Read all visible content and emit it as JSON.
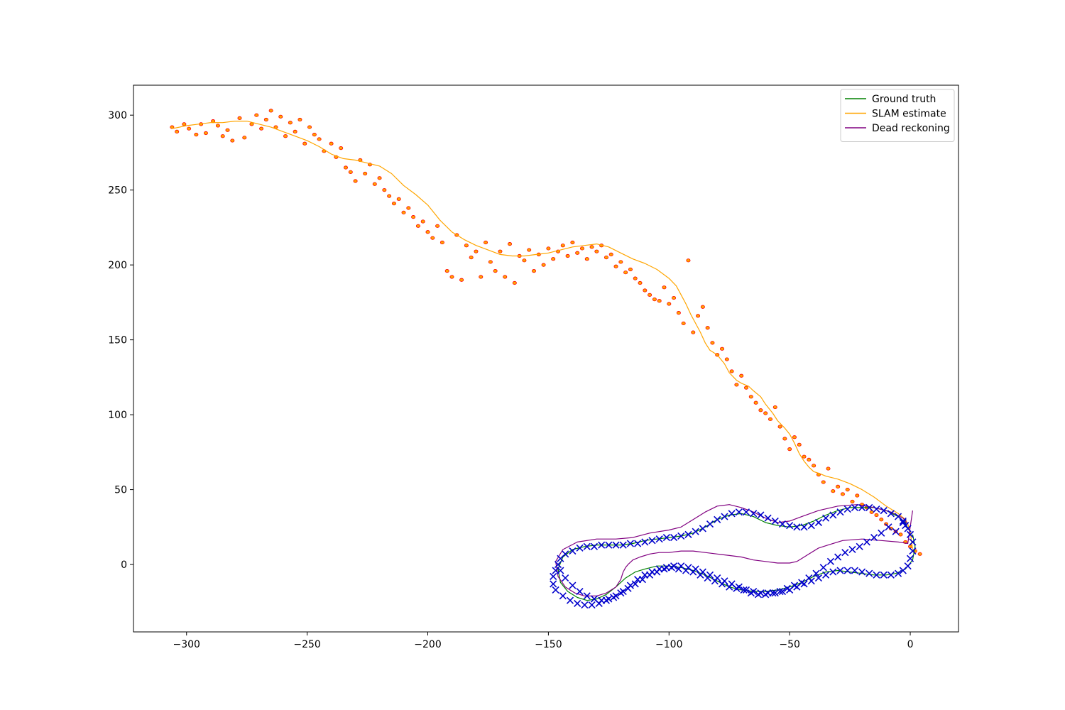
{
  "chart_data": {
    "type": "line",
    "title": "",
    "xlabel": "",
    "ylabel": "",
    "xlim": [
      -322,
      20
    ],
    "ylim": [
      -45,
      320
    ],
    "xticks": [
      -300,
      -250,
      -200,
      -150,
      -100,
      -50,
      0
    ],
    "xtick_labels": [
      "−300",
      "−250",
      "−200",
      "−150",
      "−100",
      "−50",
      "0"
    ],
    "yticks": [
      0,
      50,
      100,
      150,
      200,
      250,
      300
    ],
    "ytick_labels": [
      "0",
      "50",
      "100",
      "150",
      "200",
      "250",
      "300"
    ],
    "grid": false,
    "legend_position": "upper right",
    "series": [
      {
        "name": "Ground truth",
        "kind": "line",
        "color": "#008000",
        "x": [
          -1,
          -2,
          -5,
          -10,
          -15,
          -20,
          -25,
          -30,
          -35,
          -40,
          -45,
          -50,
          -55,
          -60,
          -65,
          -70,
          -75,
          -80,
          -85,
          -90,
          -95,
          -100,
          -105,
          -110,
          -115,
          -120,
          -125,
          -130,
          -135,
          -140,
          -144,
          -146,
          -145,
          -142,
          -138,
          -134,
          -130,
          -126,
          -122,
          -118,
          -114,
          -110,
          -105,
          -100,
          -95,
          -90,
          -85,
          -80,
          -75,
          -70,
          -65,
          -60,
          -55,
          -50,
          -45,
          -40,
          -35,
          -30,
          -25,
          -20,
          -15,
          -10,
          -6,
          -2,
          1,
          2,
          1
        ],
        "y": [
          24,
          28,
          32,
          36,
          38,
          38,
          38,
          36,
          33,
          29,
          26,
          25,
          26,
          28,
          32,
          34,
          33,
          30,
          25,
          21,
          19,
          18,
          17,
          16,
          14,
          13,
          13,
          13,
          12,
          10,
          5,
          -3,
          -12,
          -18,
          -22,
          -24,
          -23,
          -20,
          -15,
          -9,
          -5,
          -3,
          -1,
          -1,
          -2,
          -4,
          -7,
          -11,
          -15,
          -17,
          -18,
          -18,
          -17,
          -15,
          -12,
          -8,
          -5,
          -4,
          -5,
          -6,
          -7,
          -7,
          -6,
          -3,
          3,
          12,
          20
        ]
      },
      {
        "name": "SLAM estimate",
        "kind": "line",
        "color": "#FFA500",
        "x": [
          -306,
          -300,
          -295,
          -290,
          -285,
          -280,
          -275,
          -270,
          -265,
          -260,
          -255,
          -250,
          -245,
          -240,
          -235,
          -230,
          -225,
          -220,
          -215,
          -210,
          -205,
          -200,
          -195,
          -190,
          -185,
          -180,
          -175,
          -170,
          -165,
          -160,
          -155,
          -150,
          -145,
          -140,
          -135,
          -130,
          -125,
          -120,
          -115,
          -110,
          -105,
          -100,
          -97,
          -95,
          -93,
          -91,
          -89,
          -87,
          -85,
          -83,
          -80,
          -77,
          -75,
          -72,
          -70,
          -67,
          -65,
          -62,
          -60,
          -57,
          -55,
          -52,
          -50,
          -48,
          -46,
          -44,
          -42,
          -40,
          -38,
          -35,
          -30,
          -25,
          -20,
          -15,
          -10,
          -5,
          -2,
          -1,
          0,
          1
        ],
        "y": [
          291,
          293,
          294,
          295,
          295,
          296,
          296,
          294,
          292,
          289,
          286,
          283,
          279,
          274,
          271,
          270,
          268,
          266,
          261,
          253,
          247,
          240,
          230,
          222,
          217,
          213,
          210,
          207,
          206,
          206,
          207,
          208,
          210,
          212,
          213,
          214,
          212,
          208,
          204,
          201,
          197,
          191,
          186,
          180,
          174,
          167,
          161,
          155,
          148,
          143,
          140,
          134,
          128,
          123,
          121,
          119,
          116,
          112,
          107,
          101,
          96,
          91,
          87,
          81,
          74,
          69,
          65,
          62,
          61,
          59,
          57,
          54,
          50,
          45,
          39,
          34,
          30,
          27,
          22,
          10
        ]
      },
      {
        "name": "Dead reckoning",
        "kind": "line",
        "color": "#800080",
        "x": [
          -1,
          -3,
          -8,
          -15,
          -22,
          -30,
          -38,
          -45,
          -50,
          -55,
          -60,
          -65,
          -70,
          -75,
          -80,
          -85,
          -90,
          -95,
          -100,
          -108,
          -115,
          -122,
          -130,
          -138,
          -144,
          -147,
          -146,
          -143,
          -139,
          -135,
          -130,
          -126,
          -122,
          -120,
          -119,
          -118,
          -117,
          -115,
          -112,
          -108,
          -104,
          -100,
          -95,
          -90,
          -85,
          -80,
          -75,
          -70,
          -65,
          -60,
          -55,
          -50,
          -47,
          -45,
          -42,
          -38,
          -34,
          -28,
          -20,
          -12,
          -5,
          -1,
          1
        ],
        "y": [
          27,
          31,
          35,
          38,
          40,
          39,
          36,
          32,
          29,
          28,
          31,
          35,
          38,
          40,
          39,
          35,
          30,
          25,
          23,
          21,
          18,
          17,
          17,
          15,
          10,
          2,
          -8,
          -15,
          -19,
          -21,
          -21,
          -19,
          -15,
          -10,
          -5,
          -2,
          0,
          3,
          5,
          7,
          8,
          8,
          9,
          9,
          8,
          7,
          6,
          5,
          3,
          2,
          1,
          1,
          2,
          4,
          7,
          11,
          13,
          16,
          17,
          16,
          15,
          14,
          36
        ]
      },
      {
        "name": "",
        "kind": "scatter",
        "marker": "x",
        "color": "#0000CC",
        "x": [
          -2,
          -3,
          -5,
          -8,
          -11,
          -14,
          -17,
          -20,
          -23,
          -26,
          -29,
          -32,
          -35,
          -38,
          -41,
          -44,
          -47,
          -50,
          -53,
          -56,
          -59,
          -62,
          -65,
          -68,
          -71,
          -74,
          -77,
          -80,
          -83,
          -86,
          -89,
          -92,
          -95,
          -98,
          -101,
          -104,
          -107,
          -110,
          -113,
          -116,
          -119,
          -122,
          -125,
          -128,
          -131,
          -134,
          -137,
          -140,
          -143,
          -145,
          -146,
          -145,
          -143,
          -140,
          -137,
          -134,
          -131,
          -128,
          -125,
          -122,
          -119,
          -116,
          -113,
          -110,
          -107,
          -104,
          -101,
          -98,
          -95,
          -92,
          -89,
          -86,
          -83,
          -80,
          -77,
          -74,
          -71,
          -68,
          -65,
          -62,
          -59,
          -56,
          -53,
          -50,
          -47,
          -44,
          -41,
          -38,
          -35,
          -32,
          -29,
          -26,
          -23,
          -20,
          -17,
          -14,
          -11,
          -8,
          -5,
          -3,
          -1,
          0,
          1,
          1,
          0,
          -1,
          -3,
          -6,
          -9,
          -12,
          -15,
          -18,
          -21,
          -24,
          -27,
          -30,
          -33,
          -36,
          -39,
          -42,
          -45,
          -48,
          -51,
          -54,
          -57,
          -60,
          -63,
          -66,
          -69,
          -72,
          -75,
          -78,
          -81,
          -84,
          -87,
          -90,
          -93,
          -96,
          -99,
          -102,
          -105,
          -108,
          -111,
          -114,
          -117,
          -120,
          -123,
          -126,
          -129,
          -132,
          -135,
          -138,
          -141,
          -144,
          -147,
          -148,
          -148,
          -147
        ],
        "y": [
          26,
          29,
          32,
          34,
          36,
          37,
          38,
          38,
          38,
          37,
          35,
          33,
          31,
          28,
          26,
          25,
          25,
          26,
          27,
          29,
          31,
          33,
          34,
          35,
          35,
          34,
          32,
          30,
          27,
          24,
          22,
          20,
          19,
          18,
          18,
          17,
          16,
          15,
          14,
          14,
          13,
          13,
          13,
          13,
          12,
          12,
          11,
          9,
          7,
          4,
          0,
          -4,
          -9,
          -14,
          -18,
          -21,
          -23,
          -24,
          -23,
          -21,
          -18,
          -14,
          -10,
          -7,
          -5,
          -3,
          -2,
          -1,
          -1,
          -2,
          -3,
          -5,
          -7,
          -9,
          -11,
          -13,
          -15,
          -17,
          -18,
          -19,
          -19,
          -19,
          -18,
          -17,
          -15,
          -13,
          -11,
          -9,
          -7,
          -5,
          -4,
          -4,
          -4,
          -5,
          -6,
          -7,
          -7,
          -7,
          -6,
          -4,
          -1,
          4,
          9,
          15,
          20,
          24,
          28,
          22,
          25,
          21,
          18,
          15,
          12,
          10,
          8,
          5,
          2,
          -2,
          -6,
          -9,
          -12,
          -14,
          -16,
          -18,
          -19,
          -20,
          -20,
          -19,
          -17,
          -16,
          -15,
          -13,
          -11,
          -9,
          -7,
          -5,
          -4,
          -3,
          -2,
          -3,
          -5,
          -7,
          -10,
          -13,
          -16,
          -19,
          -22,
          -24,
          -26,
          -27,
          -27,
          -26,
          -24,
          -21,
          -17,
          -13,
          -8,
          -4
        ]
      },
      {
        "name": "",
        "kind": "landmarks",
        "color": "#FFA500",
        "edge_color": "#FF0000",
        "x": [
          -306,
          -304,
          -301,
          -299,
          -296,
          -294,
          -292,
          -289,
          -287,
          -285,
          -283,
          -281,
          -278,
          -276,
          -273,
          -271,
          -269,
          -267,
          -265,
          -263,
          -261,
          -259,
          -257,
          -255,
          -253,
          -251,
          -249,
          -247,
          -245,
          -243,
          -240,
          -238,
          -236,
          -234,
          -232,
          -230,
          -228,
          -226,
          -224,
          -222,
          -220,
          -218,
          -216,
          -214,
          -212,
          -210,
          -208,
          -206,
          -204,
          -202,
          -200,
          -198,
          -196,
          -194,
          -192,
          -190,
          -188,
          -186,
          -184,
          -182,
          -180,
          -178,
          -176,
          -174,
          -172,
          -170,
          -168,
          -166,
          -164,
          -162,
          -160,
          -158,
          -156,
          -154,
          -152,
          -150,
          -148,
          -146,
          -144,
          -142,
          -140,
          -138,
          -136,
          -134,
          -132,
          -130,
          -128,
          -126,
          -124,
          -122,
          -120,
          -118,
          -116,
          -114,
          -112,
          -110,
          -108,
          -106,
          -104,
          -102,
          -100,
          -98,
          -96,
          -94,
          -92,
          -90,
          -88,
          -86,
          -84,
          -82,
          -80,
          -78,
          -76,
          -74,
          -72,
          -70,
          -68,
          -66,
          -64,
          -62,
          -60,
          -58,
          -56,
          -54,
          -52,
          -50,
          -48,
          -46,
          -44,
          -42,
          -40,
          -38,
          -36,
          -34,
          -32,
          -30,
          -28,
          -26,
          -24,
          -22,
          -20,
          -18,
          -16,
          -14,
          -12,
          -10,
          -8,
          -6,
          -4,
          -2,
          0,
          2,
          4
        ],
        "y": [
          292,
          289,
          294,
          291,
          287,
          294,
          288,
          296,
          293,
          286,
          290,
          283,
          298,
          285,
          294,
          300,
          291,
          297,
          303,
          292,
          299,
          286,
          295,
          289,
          297,
          281,
          292,
          287,
          284,
          276,
          281,
          272,
          278,
          265,
          262,
          256,
          270,
          261,
          267,
          254,
          258,
          250,
          246,
          241,
          244,
          235,
          238,
          232,
          226,
          229,
          222,
          218,
          226,
          215,
          196,
          192,
          220,
          190,
          213,
          205,
          209,
          192,
          215,
          202,
          196,
          209,
          192,
          214,
          188,
          206,
          203,
          210,
          196,
          207,
          200,
          211,
          204,
          209,
          213,
          206,
          215,
          208,
          211,
          204,
          212,
          209,
          213,
          205,
          207,
          199,
          202,
          195,
          197,
          191,
          188,
          183,
          180,
          177,
          176,
          185,
          174,
          178,
          168,
          161,
          203,
          155,
          166,
          172,
          158,
          148,
          140,
          144,
          137,
          129,
          120,
          126,
          118,
          112,
          108,
          103,
          101,
          97,
          105,
          92,
          84,
          77,
          85,
          80,
          72,
          70,
          66,
          60,
          55,
          64,
          49,
          52,
          47,
          50,
          42,
          46,
          40,
          38,
          35,
          33,
          30,
          27,
          24,
          22,
          20,
          15,
          12,
          9,
          7
        ]
      }
    ]
  }
}
